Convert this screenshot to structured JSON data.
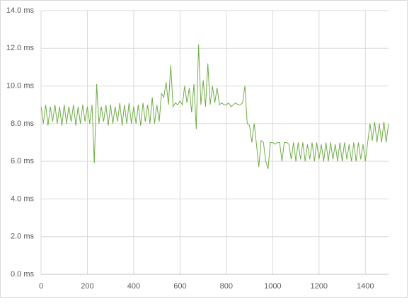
{
  "chart_data": {
    "type": "line",
    "x": [
      0,
      10,
      20,
      30,
      40,
      50,
      60,
      70,
      80,
      90,
      100,
      110,
      120,
      130,
      140,
      150,
      160,
      170,
      180,
      190,
      200,
      210,
      220,
      230,
      240,
      250,
      260,
      270,
      280,
      290,
      300,
      310,
      320,
      330,
      340,
      350,
      360,
      370,
      380,
      390,
      400,
      410,
      420,
      430,
      440,
      450,
      460,
      470,
      480,
      490,
      500,
      510,
      520,
      530,
      540,
      550,
      560,
      570,
      580,
      590,
      600,
      610,
      620,
      630,
      640,
      650,
      660,
      670,
      680,
      690,
      700,
      710,
      720,
      730,
      740,
      750,
      760,
      770,
      780,
      790,
      800,
      810,
      820,
      830,
      840,
      850,
      860,
      870,
      880,
      890,
      900,
      910,
      920,
      930,
      940,
      950,
      960,
      970,
      980,
      990,
      1000,
      1010,
      1020,
      1030,
      1040,
      1050,
      1060,
      1070,
      1080,
      1090,
      1100,
      1110,
      1120,
      1130,
      1140,
      1150,
      1160,
      1170,
      1180,
      1190,
      1200,
      1210,
      1220,
      1230,
      1240,
      1250,
      1260,
      1270,
      1280,
      1290,
      1300,
      1310,
      1320,
      1330,
      1340,
      1350,
      1360,
      1370,
      1380,
      1390,
      1400,
      1410,
      1420,
      1430,
      1440,
      1450,
      1460,
      1470,
      1480,
      1490,
      1500
    ],
    "series": [
      {
        "color": "#70ad47",
        "values": [
          8.9,
          8.0,
          9.0,
          7.9,
          8.9,
          8.1,
          9.0,
          8.0,
          8.9,
          7.9,
          9.0,
          8.0,
          8.9,
          8.1,
          9.0,
          7.9,
          8.9,
          8.0,
          9.0,
          8.1,
          8.9,
          8.0,
          9.0,
          5.9,
          10.1,
          8.0,
          8.9,
          8.1,
          9.0,
          7.9,
          9.0,
          8.0,
          8.9,
          8.1,
          9.1,
          7.9,
          9.0,
          8.0,
          9.1,
          8.0,
          8.9,
          8.0,
          9.0,
          7.9,
          9.1,
          8.1,
          9.0,
          8.0,
          9.4,
          8.0,
          9.0,
          8.1,
          9.6,
          9.4,
          10.2,
          9.0,
          11.1,
          8.9,
          9.1,
          9.0,
          9.2,
          9.0,
          10.0,
          9.1,
          9.9,
          8.6,
          10.1,
          7.7,
          12.2,
          9.0,
          10.3,
          8.9,
          11.2,
          9.0,
          10.0,
          9.1,
          9.9,
          9.0,
          9.1,
          9.0,
          9.0,
          9.1,
          8.9,
          9.0,
          9.1,
          9.0,
          9.0,
          9.1,
          10.0,
          8.0,
          7.9,
          7.0,
          8.0,
          6.9,
          5.7,
          7.1,
          7.0,
          6.0,
          5.6,
          7.0,
          7.0,
          6.9,
          7.0,
          7.0,
          6.0,
          7.0,
          7.0,
          6.9,
          6.1,
          7.0,
          6.0,
          7.0,
          6.1,
          7.0,
          6.0,
          6.9,
          6.1,
          7.0,
          6.0,
          7.0,
          6.1,
          6.9,
          6.0,
          7.0,
          6.0,
          7.0,
          6.1,
          6.9,
          6.0,
          7.0,
          6.0,
          7.0,
          6.1,
          6.9,
          6.0,
          7.0,
          6.0,
          7.0,
          6.1,
          6.9,
          6.0,
          7.0,
          8.0,
          7.1,
          8.1,
          7.0,
          8.0,
          7.0,
          8.1,
          7.0,
          8.0
        ]
      }
    ],
    "xlim": [
      0,
      1500
    ],
    "xticks": [
      0,
      200,
      400,
      600,
      800,
      1000,
      1200,
      1400
    ],
    "ylim": [
      0,
      14
    ],
    "yticks": [
      {
        "value": 0,
        "label": "0.0 ms"
      },
      {
        "value": 2,
        "label": "2.0 ms"
      },
      {
        "value": 4,
        "label": "4.0 ms"
      },
      {
        "value": 6,
        "label": "6.0 ms"
      },
      {
        "value": 8,
        "label": "8.0 ms"
      },
      {
        "value": 10,
        "label": "10.0 ms"
      },
      {
        "value": 12,
        "label": "12.0 ms"
      },
      {
        "value": 14,
        "label": "14.0 ms"
      }
    ],
    "grid": true
  }
}
